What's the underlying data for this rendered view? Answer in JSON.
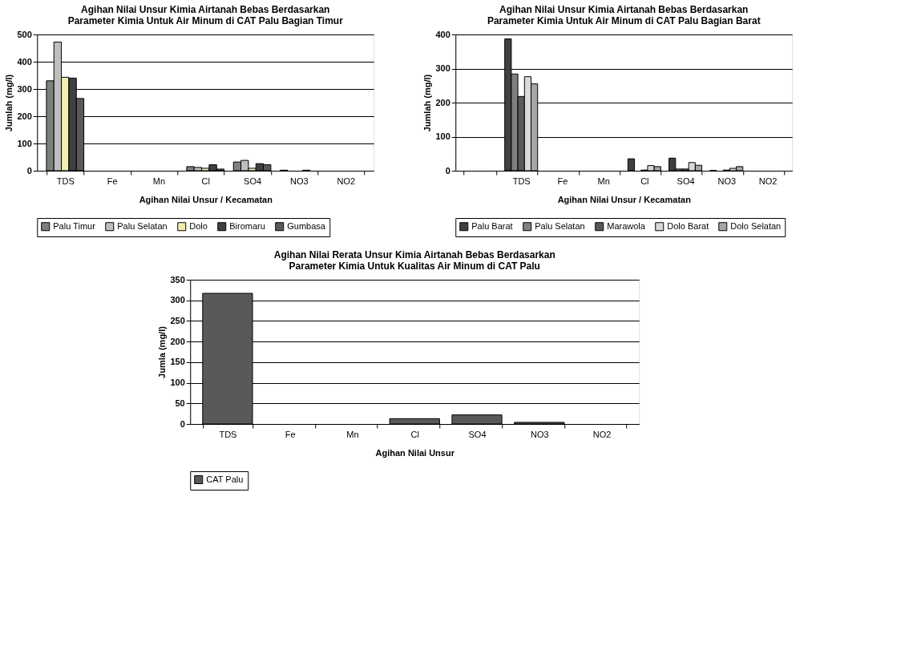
{
  "chart_data": [
    {
      "type": "bar",
      "title": "Agihan Nilai Unsur Kimia Airtanah Bebas Berdasarkan Parameter Kimia Untuk Air Minum di CAT Palu Bagian Timur",
      "xlabel": "Agihan Nilai Unsur / Kecamatan",
      "ylabel": "Jumlah (mg/l)",
      "categories": [
        "TDS",
        "Fe",
        "Mn",
        "Cl",
        "SO4",
        "NO3",
        "NO2"
      ],
      "ylim": [
        0,
        500
      ],
      "yticks": [
        0,
        100,
        200,
        300,
        400,
        500
      ],
      "grid": "y",
      "legend": "bottom",
      "series": [
        {
          "name": "Palu Timur",
          "color": "#7f7f7f",
          "values": [
            330,
            0,
            0,
            15,
            32,
            2,
            0
          ]
        },
        {
          "name": "Palu Selatan",
          "color": "#bfbfbf",
          "values": [
            472,
            0,
            0,
            12,
            38,
            0,
            0
          ]
        },
        {
          "name": "Dolo",
          "color": "#f2eeb0",
          "values": [
            343,
            0,
            0,
            9,
            9,
            0,
            0
          ]
        },
        {
          "name": "Biromaru",
          "color": "#404040",
          "values": [
            340,
            0,
            0,
            22,
            26,
            2,
            0
          ]
        },
        {
          "name": "Gumbasa",
          "color": "#595959",
          "values": [
            265,
            0,
            0,
            6,
            22,
            0,
            0
          ]
        }
      ]
    },
    {
      "type": "bar",
      "title": "Agihan Nilai Unsur Kimia Airtanah Bebas Berdasarkan Parameter Kimia Untuk Air Minum di CAT Palu Bagian Barat",
      "xlabel": "Agihan Nilai Unsur / Kecamatan",
      "ylabel": "Jumlah (mg/l)",
      "categories": [
        null,
        "TDS",
        "Fe",
        "Mn",
        "Cl",
        "SO4",
        "NO3",
        "NO2"
      ],
      "ylim": [
        0,
        400
      ],
      "yticks": [
        0,
        100,
        200,
        300,
        400
      ],
      "grid": "y",
      "legend": "bottom",
      "series": [
        {
          "name": "Palu Barat",
          "color": "#404040",
          "values": [
            null,
            387,
            0,
            0,
            35,
            37,
            1,
            0
          ]
        },
        {
          "name": "Palu Selatan",
          "color": "#7f7f7f",
          "values": [
            null,
            284,
            0,
            0,
            0,
            5,
            0,
            0
          ]
        },
        {
          "name": "Marawola",
          "color": "#595959",
          "values": [
            null,
            218,
            0,
            0,
            2,
            5,
            2,
            0
          ]
        },
        {
          "name": "Dolo Barat",
          "color": "#d9d9d9",
          "values": [
            null,
            276,
            0,
            0,
            15,
            24,
            7,
            0
          ]
        },
        {
          "name": "Dolo Selatan",
          "color": "#a6a6a6",
          "values": [
            null,
            255,
            0,
            0,
            12,
            16,
            12,
            0
          ]
        }
      ]
    },
    {
      "type": "bar",
      "title": "Agihan Nilai Rerata Unsur Kimia Airtanah Bebas Berdasarkan Parameter Kimia Untuk Kualitas Air Minum di CAT Palu",
      "xlabel": "Agihan Nilai Unsur",
      "ylabel": "Jumla (mg/l)",
      "categories": [
        "TDS",
        "Fe",
        "Mn",
        "Cl",
        "SO4",
        "NO3",
        "NO2"
      ],
      "ylim": [
        0,
        350
      ],
      "yticks": [
        0,
        50,
        100,
        150,
        200,
        250,
        300,
        350
      ],
      "grid": "y",
      "legend": "bottom",
      "series": [
        {
          "name": "CAT Palu",
          "color": "#595959",
          "values": [
            317,
            0,
            0,
            13,
            22,
            4,
            0
          ]
        }
      ]
    }
  ]
}
